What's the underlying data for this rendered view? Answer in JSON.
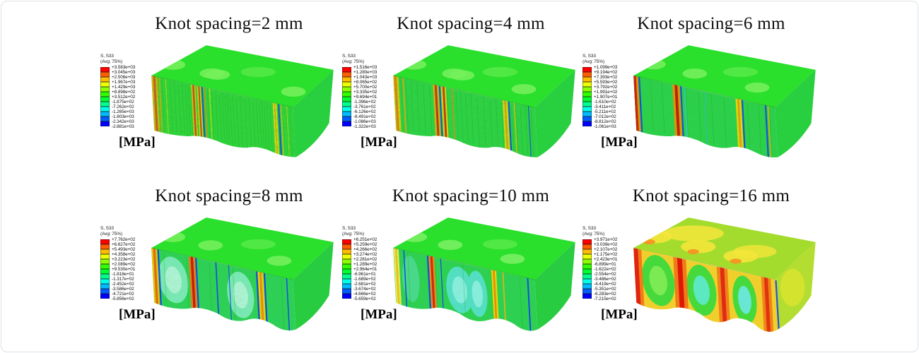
{
  "figure": {
    "legend": {
      "title": "S, S33",
      "subtitle": "(Avg: 75%)",
      "unit": "[MPa]"
    },
    "legend_colors": [
      "#ff0000",
      "#ff5e00",
      "#ffbb00",
      "#eaff00",
      "#8cff00",
      "#2fff00",
      "#00ff2f",
      "#00ff8c",
      "#00ffea",
      "#00bbff",
      "#005eff",
      "#0000ff"
    ],
    "edge_blue": "#1546e8",
    "panels": [
      {
        "title": "Knot spacing=2 mm",
        "ticks": [
          "+3.583e+03",
          "+3.045e+03",
          "+2.506e+03",
          "+1.967e+03",
          "+1.429e+03",
          "+8.898e+02",
          "+3.512e+02",
          "-1.875e+02",
          "-7.262e+02",
          "-1.265e+03",
          "-1.803e+03",
          "-2.342e+03",
          "-2.881e+03"
        ],
        "model": {
          "top": "#2ae02c",
          "top_blob": "#74ef5a",
          "front": "#2fd838",
          "right": "#28cf3e",
          "texture": 0.45,
          "wave": 4,
          "streaks": 42,
          "stripes": [
            {
              "t": 0.02,
              "w": 0.02,
              "core": "#e64a1a",
              "glow": "#efb400"
            },
            {
              "t": 0.055,
              "w": 0.012,
              "core": "#efa400"
            },
            {
              "t": 0.1,
              "w": 0.008,
              "core": "#bfe000"
            },
            {
              "t": 0.295,
              "w": 0.016,
              "core": "#e0361c",
              "glow": "#eec800"
            },
            {
              "t": 0.335,
              "w": 0.014,
              "core": "#e0361c",
              "glow": "#f3de00",
              "br": true
            },
            {
              "t": 0.375,
              "w": 0.011,
              "core": "#ef8a16"
            },
            {
              "t": 0.41,
              "w": 0.008,
              "core": "#d8e800"
            },
            {
              "t": 0.87,
              "w": 0.014,
              "core": "#efb014",
              "glow": "#f0e800"
            },
            {
              "t": 0.915,
              "w": 0.01,
              "core": "#e8c414",
              "bl": true
            },
            {
              "t": 0.955,
              "w": 0.007,
              "core": "#bfe414"
            }
          ]
        }
      },
      {
        "title": "Knot spacing=4 mm",
        "ticks": [
          "+1.516e+03",
          "+1.280e+03",
          "+1.043e+03",
          "+8.065e+02",
          "+5.700e+02",
          "+3.335e+02",
          "+9.694e+01",
          "-1.396e+02",
          "-3.761e+02",
          "-6.126e+02",
          "-8.491e+02",
          "-1.086e+03",
          "-1.322e+03"
        ],
        "model": {
          "top": "#2ae02c",
          "top_blob": "#74ef5c",
          "front": "#2dd544",
          "right": "#28cf3e",
          "texture": 0.38,
          "wave": 5,
          "streaks": 26,
          "stripes": [
            {
              "t": 0.015,
              "w": 0.022,
              "core": "#ee7c14",
              "glow": "#f2cc00"
            },
            {
              "t": 0.07,
              "w": 0.013,
              "core": "#e8a814"
            },
            {
              "t": 0.3,
              "w": 0.02,
              "core": "#d92012",
              "glow": "#f0b400",
              "br": true
            },
            {
              "t": 0.355,
              "w": 0.018,
              "core": "#d92012",
              "glow": "#f3da00"
            },
            {
              "t": 0.415,
              "w": 0.011,
              "core": "#ee8c14"
            },
            {
              "t": 0.79,
              "w": 0.018,
              "core": "#eda014",
              "glow": "#f2e200",
              "br": true
            },
            {
              "t": 0.855,
              "w": 0.011,
              "core": "#e6c014"
            },
            {
              "t": 0.955,
              "w": 0.008,
              "core": "#1546e8"
            }
          ]
        }
      },
      {
        "title": "Knot spacing=6 mm",
        "ticks": [
          "+1.099e+03",
          "+9.194e+02",
          "+7.393e+02",
          "+5.593e+02",
          "+3.792e+02",
          "+1.991e+02",
          "+1.907e+01",
          "-1.610e+02",
          "-3.411e+02",
          "-5.211e+02",
          "-7.012e+02",
          "-8.812e+02",
          "-1.061e+03"
        ],
        "model": {
          "top": "#2ae02c",
          "top_blob": "#74ef5c",
          "front": "#2cd24a",
          "right": "#28cf3e",
          "texture": 0.22,
          "wave": 6,
          "streaks": 12,
          "stripes": [
            {
              "t": 0.008,
              "w": 0.024,
              "core": "#d31708",
              "glow": "#ef9400",
              "br": true
            },
            {
              "t": 0.3,
              "w": 0.026,
              "core": "#c91205",
              "glow": "#ef9400",
              "br": true
            },
            {
              "t": 0.36,
              "w": 0.009,
              "core": "#3cc8e0"
            },
            {
              "t": 0.5,
              "w": 0.006,
              "core": "#35b8d8"
            },
            {
              "t": 0.74,
              "w": 0.02,
              "core": "#ee9c14",
              "glow": "#f2dc00",
              "br": true
            },
            {
              "t": 0.95,
              "w": 0.011,
              "core": "#e8ae14",
              "bl": true
            }
          ]
        }
      },
      {
        "title": "Knot spacing=8 mm",
        "ticks": [
          "+7.762e+02",
          "+6.627e+02",
          "+5.493e+02",
          "+4.358e+02",
          "+3.223e+02",
          "+2.089e+02",
          "+9.530e+01",
          "-1.818e+01",
          "-1.317e+02",
          "-2.452e+02",
          "-3.586e+02",
          "-4.721e+02",
          "-5.856e+02"
        ],
        "model": {
          "top": "#2ae02c",
          "top_blob": "#74ef5c",
          "front": "#2ed157",
          "right": "#28cc40",
          "texture": 0.12,
          "wave": 9,
          "streaks": 6,
          "ovals": [
            {
              "t": 0.145,
              "rx": 0.105,
              "color": "#7deab8",
              "inner": "#b2f4d8"
            },
            {
              "t": 0.62,
              "rx": 0.095,
              "color": "#7deab8",
              "inner": "#b2f4d8"
            }
          ],
          "stripes": [
            {
              "t": 0.02,
              "w": 0.02,
              "core": "#e86414",
              "glow": "#efc400",
              "bl": true,
              "br": true
            },
            {
              "t": 0.285,
              "w": 0.022,
              "core": "#cd1405",
              "glow": "#ee7c14",
              "br": true
            },
            {
              "t": 0.455,
              "w": 0.011,
              "core": "#1546e8"
            },
            {
              "t": 0.545,
              "w": 0.007,
              "core": "#1546e8"
            },
            {
              "t": 0.77,
              "w": 0.02,
              "core": "#ea8c14",
              "glow": "#f0d400",
              "bl": true,
              "br": true
            },
            {
              "t": 0.955,
              "w": 0.01,
              "core": "#1546e8"
            }
          ]
        }
      },
      {
        "title": "Knot spacing=10 mm",
        "ticks": [
          "+6.251e+02",
          "+5.259e+02",
          "+4.266e+02",
          "+3.274e+02",
          "+2.281e+02",
          "+1.289e+02",
          "+2.964e+01",
          "-6.961e+01",
          "-1.689e+02",
          "-2.681e+02",
          "-3.674e+02",
          "-4.666e+02",
          "-5.659e+02"
        ],
        "model": {
          "top": "#2ae02c",
          "top_blob": "#78ef60",
          "front": "#2ed153",
          "right": "#28cc40",
          "texture": 0.1,
          "wave": 10,
          "streaks": 5,
          "ovals": [
            {
              "t": 0.115,
              "rx": 0.06,
              "color": "#4ada8e"
            },
            {
              "t": 0.46,
              "rx": 0.095,
              "color": "#55e0c8",
              "inner": "#8cefe2"
            },
            {
              "t": 0.585,
              "rx": 0.07,
              "color": "#55e0c8",
              "inner": "#8cefe2"
            }
          ],
          "stripes": [
            {
              "t": 0.02,
              "w": 0.018,
              "core": "#eec414",
              "glow": "#f2ea60"
            },
            {
              "t": 0.075,
              "w": 0.01,
              "core": "#1546e8"
            },
            {
              "t": 0.27,
              "w": 0.02,
              "core": "#d92012",
              "glow": "#ee8c14",
              "bl": true
            },
            {
              "t": 0.335,
              "w": 0.008,
              "core": "#1546e8"
            },
            {
              "t": 0.71,
              "w": 0.018,
              "core": "#ea8c14",
              "glow": "#f3d800"
            },
            {
              "t": 0.775,
              "w": 0.011,
              "core": "#eeb414"
            },
            {
              "t": 0.95,
              "w": 0.013,
              "core": "#1546e8"
            }
          ]
        }
      },
      {
        "title": "Knot spacing=16 mm",
        "ticks": [
          "+3.971e+02",
          "+3.039e+02",
          "+2.107e+02",
          "+1.175e+02",
          "+2.423e+01",
          "-6.899e+01",
          "-1.622e+02",
          "-2.554e+02",
          "-3.486e+02",
          "-4.419e+02",
          "-5.351e+02",
          "-6.283e+02",
          "-7.215e+02"
        ],
        "model": {
          "top": "#a4dc2e",
          "top_blob": "#f4e63a",
          "top_hot": "#f59422",
          "front": "#f0cf2c",
          "right": "#b4dd32",
          "right_blob": "#d8e42e",
          "texture": 0,
          "wave": 13,
          "streaks": 0,
          "right_edge_blue": true,
          "ovals": [
            {
              "t": 0.165,
              "rx": 0.115,
              "ry": 0.46,
              "color": "#46d93c",
              "inner": "#7cea52"
            },
            {
              "t": 0.47,
              "rx": 0.105,
              "ry": 0.46,
              "color": "#46d93c",
              "inner": "#5ce8c0"
            },
            {
              "t": 0.775,
              "rx": 0.085,
              "ry": 0.44,
              "color": "#46d93c",
              "inner": "#6ae6d4"
            }
          ],
          "stripes": [
            {
              "t": 0.015,
              "w": 0.04,
              "core": "#e02410",
              "glow": "#f07c18"
            },
            {
              "t": 0.325,
              "w": 0.045,
              "core": "#dd1808",
              "glow": "#f07c18"
            },
            {
              "t": 0.625,
              "w": 0.038,
              "core": "#e02c14",
              "glow": "#f08418"
            },
            {
              "t": 0.935,
              "w": 0.034,
              "core": "#e03410",
              "glow": "#f08418"
            }
          ]
        }
      }
    ]
  }
}
